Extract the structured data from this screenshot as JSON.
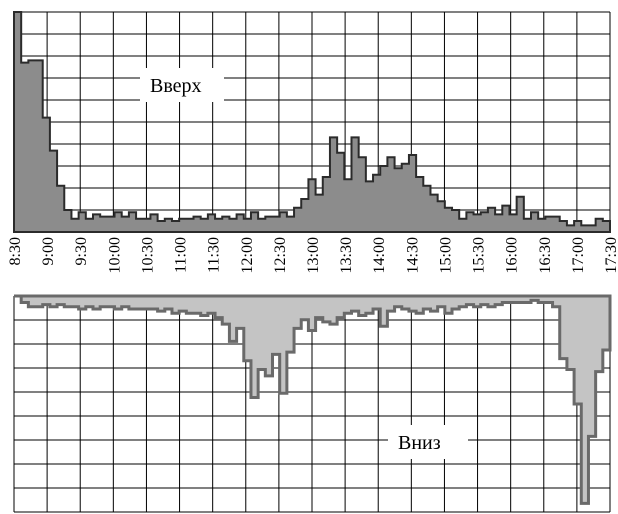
{
  "chart_data": [
    {
      "type": "area",
      "label": "Вверх",
      "ylim": [
        0,
        10
      ],
      "x_start": "8:30",
      "x_step_minutes": 5,
      "values": [
        10,
        7.7,
        7.8,
        7.8,
        5.2,
        3.7,
        2.1,
        1.0,
        0.6,
        0.9,
        0.6,
        0.8,
        0.7,
        0.7,
        0.9,
        0.7,
        0.9,
        0.6,
        0.6,
        0.8,
        0.5,
        0.6,
        0.5,
        0.6,
        0.6,
        0.7,
        0.6,
        0.8,
        0.6,
        0.7,
        0.6,
        0.8,
        0.6,
        0.9,
        0.6,
        0.7,
        0.7,
        0.9,
        0.7,
        1.1,
        1.5,
        2.4,
        1.7,
        2.5,
        4.3,
        3.6,
        2.4,
        4.3,
        3.4,
        2.3,
        2.6,
        3.0,
        3.4,
        2.9,
        3.1,
        3.5,
        2.5,
        2.1,
        1.7,
        1.4,
        1.1,
        1.0,
        0.6,
        0.9,
        0.8,
        0.9,
        1.1,
        0.8,
        1.2,
        0.8,
        1.6,
        0.6,
        0.9,
        0.6,
        0.7,
        0.7,
        0.5,
        0.3,
        0.5,
        0.3,
        0.3,
        0.6,
        0.5
      ]
    },
    {
      "type": "area",
      "label": "Вниз",
      "ylim": [
        0,
        10
      ],
      "x_start": "8:30",
      "x_step_minutes": 5,
      "values": [
        0,
        0.3,
        0.5,
        0.5,
        0.4,
        0.5,
        0.4,
        0.5,
        0.5,
        0.6,
        0.5,
        0.6,
        0.5,
        0.5,
        0.6,
        0.5,
        0.6,
        0.6,
        0.6,
        0.6,
        0.7,
        0.6,
        0.8,
        0.7,
        0.8,
        0.8,
        0.9,
        0.8,
        1.0,
        1.3,
        2.1,
        1.5,
        3.0,
        4.7,
        3.4,
        3.7,
        2.7,
        4.5,
        2.6,
        1.5,
        1.1,
        1.6,
        1.0,
        1.2,
        1.3,
        1.0,
        0.8,
        0.7,
        0.9,
        0.8,
        0.6,
        1.4,
        0.7,
        0.5,
        0.6,
        0.7,
        0.8,
        0.6,
        0.7,
        0.5,
        0.8,
        0.6,
        0.5,
        0.4,
        0.5,
        0.4,
        0.5,
        0.4,
        0.3,
        0.3,
        0.3,
        0.3,
        0.2,
        0.3,
        0.3,
        0.5,
        2.9,
        3.4,
        5.0,
        9.6,
        6.5,
        3.5,
        2.5
      ]
    }
  ],
  "x_ticks": [
    "8:30",
    "9:00",
    "9:30",
    "10:00",
    "10:30",
    "11:00",
    "11:30",
    "12:00",
    "12:30",
    "13:00",
    "13:30",
    "14:00",
    "14:30",
    "15:00",
    "15:30",
    "16:00",
    "16:30",
    "17:00",
    "17:30"
  ],
  "grid": true,
  "colors": {
    "up_fill": "#8c8c8c",
    "up_stroke": "#2b2b2b",
    "down_fill": "#c4c4c4",
    "down_stroke": "#6a6a6a",
    "grid": "#000000"
  }
}
